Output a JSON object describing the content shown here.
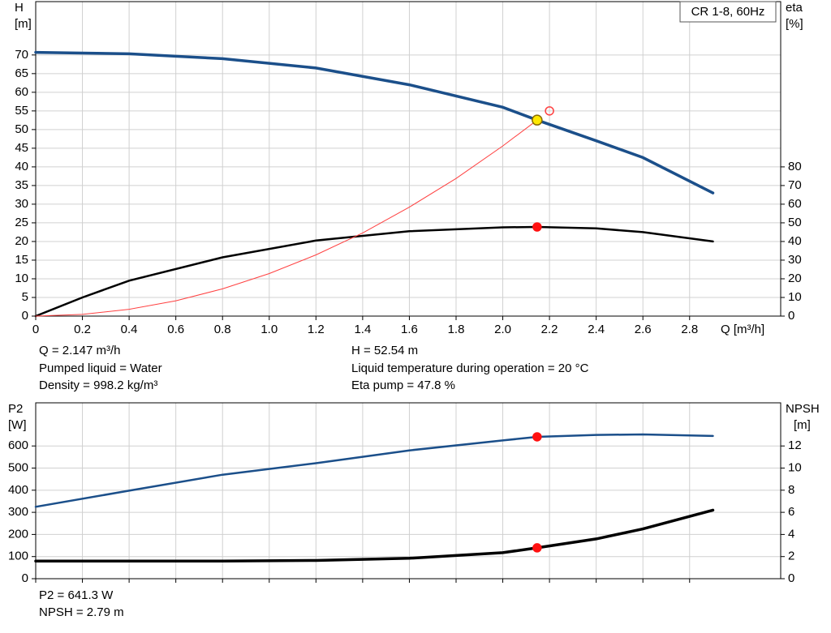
{
  "chart_data": [
    {
      "type": "line",
      "title": "CR 1-8, 60Hz",
      "ylabel": [
        "H",
        "[m]"
      ],
      "y2label": [
        "eta",
        "[%]"
      ],
      "xlabel": "Q [m³/h]",
      "xlim": [
        0,
        3.19
      ],
      "ylim": [
        0,
        84.3
      ],
      "y2lim": [
        0,
        168.6
      ],
      "xticks": [
        0,
        0.2,
        0.4,
        0.6,
        0.8,
        {
          "value": 1,
          "label": "1.0"
        },
        1.2,
        1.4,
        1.6,
        1.8,
        {
          "value": 2,
          "label": "2.0"
        },
        2.2,
        2.4,
        2.6,
        2.8
      ],
      "yticks": [
        0,
        5,
        10,
        15,
        20,
        25,
        30,
        35,
        40,
        45,
        50,
        55,
        60,
        65,
        70
      ],
      "y2ticks": [
        0,
        10,
        20,
        30,
        40,
        50,
        60,
        70,
        80
      ],
      "show_xtick_labels": true,
      "grid": true,
      "series": [
        {
          "color": "#1b4f8a",
          "width": 3.5,
          "axis": "y",
          "x": [
            0,
            0.4,
            0.8,
            1.2,
            1.6,
            2.0,
            2.147,
            2.4,
            2.6,
            2.9
          ],
          "values": [
            70.7,
            70.3,
            69,
            66.5,
            62,
            56,
            52.54,
            47,
            42.5,
            33
          ]
        },
        {
          "color": "#000000",
          "width": 2.5,
          "axis": "y2",
          "x": [
            0,
            0.2,
            0.4,
            0.8,
            1.2,
            1.6,
            2.0,
            2.147,
            2.4,
            2.6,
            2.9
          ],
          "values": [
            0,
            10,
            19,
            31.5,
            40.5,
            45.5,
            47.6,
            47.8,
            47,
            45,
            40
          ]
        },
        {
          "color": "#ff4040",
          "width": 1,
          "axis": "y",
          "x": [
            0,
            0.2,
            0.4,
            0.6,
            0.8,
            1.0,
            1.2,
            1.4,
            1.6,
            1.8,
            2.0,
            2.147
          ],
          "values": [
            0,
            0.46,
            1.82,
            4.1,
            7.3,
            11.4,
            16.4,
            22.3,
            29.2,
            36.9,
            45.6,
            52.54
          ]
        }
      ],
      "points": [
        {
          "x": 2.2,
          "y": 55,
          "axis": "y",
          "color": "none",
          "stroke": "#ff4040",
          "r": 5
        },
        {
          "x": 2.147,
          "y": 52.54,
          "axis": "y",
          "color": "#ffe800",
          "stroke": "#8a6d00",
          "r": 6
        },
        {
          "x": 2.147,
          "y": 47.8,
          "axis": "y2",
          "color": "#ff1010",
          "stroke": "#ff1010",
          "r": 5
        }
      ],
      "annotations": [
        "Q = 2.147 m³/h",
        "Pumped liquid = Water",
        "Density = 998.2 kg/m³",
        "H = 52.54 m",
        "Liquid temperature during operation = 20 °C",
        "Eta pump = 47.8 %"
      ]
    },
    {
      "type": "line",
      "ylabel": [
        "P2",
        "[W]"
      ],
      "y2label": [
        "NPSH",
        "[m]"
      ],
      "xlim": [
        0,
        3.19
      ],
      "ylim": [
        0,
        795
      ],
      "y2lim": [
        0,
        15.9
      ],
      "xticks": [
        0,
        0.2,
        0.4,
        0.6,
        0.8,
        1,
        1.2,
        1.4,
        1.6,
        1.8,
        2,
        2.2,
        2.4,
        2.6,
        2.8
      ],
      "yticks": [
        0,
        100,
        200,
        300,
        400,
        500,
        600
      ],
      "y2ticks": [
        0,
        2,
        4,
        6,
        8,
        10,
        12
      ],
      "show_xtick_labels": false,
      "grid": true,
      "series": [
        {
          "color": "#1b4f8a",
          "width": 2.5,
          "axis": "y",
          "x": [
            0,
            0.4,
            0.8,
            1.2,
            1.6,
            2.0,
            2.147,
            2.4,
            2.6,
            2.9
          ],
          "values": [
            325,
            398,
            470,
            522,
            580,
            625,
            641.3,
            650,
            652,
            645
          ]
        },
        {
          "color": "#000000",
          "width": 3.5,
          "axis": "y2",
          "x": [
            0,
            0.4,
            0.8,
            1.2,
            1.6,
            2.0,
            2.147,
            2.4,
            2.6,
            2.9
          ],
          "values": [
            1.6,
            1.6,
            1.6,
            1.65,
            1.85,
            2.35,
            2.79,
            3.6,
            4.5,
            6.2
          ]
        }
      ],
      "points": [
        {
          "x": 2.147,
          "y": 641.3,
          "axis": "y",
          "color": "#ff1010",
          "stroke": "#ff1010",
          "r": 5
        },
        {
          "x": 2.147,
          "y": 2.79,
          "axis": "y2",
          "color": "#ff1010",
          "stroke": "#ff1010",
          "r": 5
        }
      ],
      "annotations": [
        "P2 = 641.3 W",
        "NPSH = 2.79 m"
      ]
    }
  ]
}
